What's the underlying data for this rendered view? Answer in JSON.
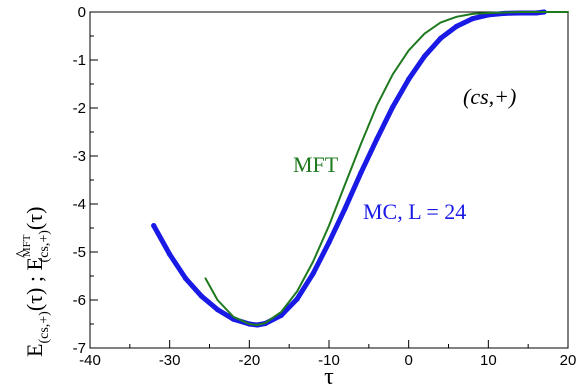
{
  "chart_data": {
    "type": "line",
    "xlabel": "τ",
    "ylabel": {
      "base": "E",
      "sub1": "(cs,+)",
      "arg1": "(τ) ; ",
      "hat": "^",
      "base2": "E",
      "sup2": "MFT",
      "sub2": "(cs,+)",
      "arg2": "(τ)"
    },
    "xlim": [
      -40,
      20
    ],
    "ylim": [
      -7,
      0
    ],
    "xticks": [
      -40,
      -30,
      -20,
      -10,
      0,
      10,
      20
    ],
    "yticks": [
      0,
      -1,
      -2,
      -3,
      -4,
      -5,
      -6,
      -7
    ],
    "grid": false,
    "colors": {
      "mc": "#1a1ae6",
      "mft": "#1f7a1f"
    },
    "series": [
      {
        "name": "MC, L = 24",
        "color": "#1a1ae6",
        "x": [
          -32,
          -30,
          -28,
          -26,
          -24,
          -22,
          -20,
          -19,
          -18,
          -16,
          -14,
          -12,
          -10,
          -8,
          -6,
          -4,
          -2,
          0,
          2,
          4,
          6,
          8,
          10,
          12,
          14,
          16,
          17
        ],
        "y": [
          -4.45,
          -5.05,
          -5.55,
          -5.92,
          -6.2,
          -6.4,
          -6.5,
          -6.52,
          -6.49,
          -6.32,
          -5.98,
          -5.45,
          -4.8,
          -4.1,
          -3.35,
          -2.65,
          -1.98,
          -1.4,
          -0.92,
          -0.55,
          -0.3,
          -0.14,
          -0.06,
          -0.03,
          -0.02,
          -0.02,
          0.0
        ]
      },
      {
        "name": "MFT",
        "color": "#1f7a1f",
        "x": [
          -25.5,
          -24,
          -22,
          -20,
          -19,
          -18,
          -16,
          -14,
          -12,
          -10,
          -8,
          -6,
          -4,
          -2,
          0,
          2,
          4,
          6,
          8,
          10,
          12,
          14,
          16,
          18,
          20
        ],
        "y": [
          -5.55,
          -6.0,
          -6.35,
          -6.5,
          -6.52,
          -6.48,
          -6.25,
          -5.82,
          -5.2,
          -4.45,
          -3.6,
          -2.75,
          -1.95,
          -1.3,
          -0.8,
          -0.45,
          -0.22,
          -0.1,
          -0.04,
          -0.02,
          -0.01,
          0.0,
          0.0,
          0.0,
          0.0
        ]
      }
    ],
    "annotations": {
      "mft_label": "MFT",
      "mc_label": "MC, L = 24",
      "state_label": "(cs,+)"
    }
  }
}
